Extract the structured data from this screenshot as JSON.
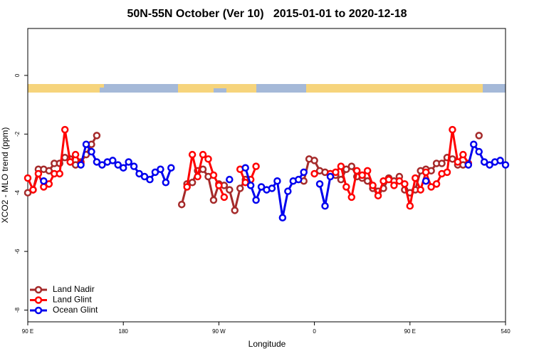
{
  "chart_data": {
    "type": "line",
    "title": "50N-55N October (Ver 10)   2015-01-01 to 2020-12-18",
    "x_label": "Longitude",
    "y_label": "XCO2 - MLO trend (ppm)",
    "x": [
      90,
      95,
      100,
      105,
      110,
      115,
      120,
      125,
      130,
      135,
      140,
      145,
      150,
      155,
      160,
      165,
      170,
      175,
      180,
      185,
      190,
      195,
      200,
      205,
      210,
      215,
      220,
      225,
      230,
      235,
      240,
      245,
      250,
      255,
      260,
      265,
      270,
      275,
      280,
      285,
      290,
      295,
      300,
      305,
      310,
      315,
      320,
      325,
      330,
      335,
      340,
      345,
      350,
      355,
      360,
      365,
      370,
      375,
      380,
      385,
      390,
      395,
      400,
      405,
      410,
      415,
      420,
      425,
      430,
      435,
      440,
      445,
      450,
      455,
      460,
      465,
      470,
      475,
      480,
      485,
      490,
      495,
      500,
      505,
      510,
      515,
      520,
      525,
      530,
      535,
      540
    ],
    "series": [
      {
        "name": "Land Nadir",
        "color": "#a52a2a",
        "values": [
          -4.0,
          -3.9,
          -3.2,
          -3.2,
          -3.25,
          -3.0,
          -3.0,
          -2.8,
          -2.85,
          -3.05,
          -2.95,
          -2.7,
          -2.35,
          -2.05,
          null,
          null,
          null,
          null,
          null,
          null,
          null,
          null,
          null,
          null,
          null,
          null,
          null,
          null,
          null,
          -4.4,
          -3.7,
          -3.65,
          -3.25,
          -3.2,
          -3.45,
          -4.25,
          -3.7,
          -3.75,
          -3.9,
          -4.6,
          -3.85,
          -3.55,
          null,
          null,
          null,
          null,
          null,
          null,
          null,
          null,
          null,
          null,
          -3.6,
          -2.85,
          -2.9,
          -3.25,
          -3.3,
          -3.35,
          -3.4,
          -3.55,
          -3.2,
          -3.1,
          -3.45,
          -3.5,
          -3.6,
          -3.85,
          -3.95,
          -3.85,
          -3.5,
          -3.6,
          -3.45,
          -3.9,
          -4.0,
          -3.9,
          -3.25,
          -3.2,
          -3.25,
          -3.0,
          -3.0,
          -2.8,
          -2.85,
          -3.05,
          -3.05,
          null,
          null,
          -2.05,
          null,
          null,
          null,
          null,
          null
        ]
      },
      {
        "name": "Land Glint",
        "color": "#ff0000",
        "values": [
          -3.5,
          -3.9,
          -3.35,
          -3.8,
          -3.7,
          -3.35,
          -3.35,
          -1.85,
          -2.95,
          -2.7,
          -3.0,
          null,
          null,
          null,
          null,
          null,
          null,
          null,
          null,
          null,
          null,
          null,
          null,
          null,
          null,
          null,
          null,
          null,
          null,
          null,
          -3.8,
          -2.7,
          -3.45,
          -2.7,
          -2.85,
          -3.4,
          -3.75,
          -4.15,
          null,
          null,
          -3.2,
          -3.65,
          -3.55,
          -3.1,
          null,
          null,
          null,
          null,
          null,
          null,
          null,
          null,
          null,
          null,
          -3.35,
          null,
          null,
          -3.35,
          -3.3,
          -3.1,
          -3.8,
          -4.15,
          -3.25,
          -3.4,
          -3.25,
          -3.75,
          -4.1,
          -3.6,
          -3.55,
          -3.75,
          -3.6,
          -3.7,
          -4.45,
          -3.5,
          -3.9,
          -3.3,
          -3.8,
          -3.7,
          -3.35,
          -3.3,
          -1.85,
          -2.95,
          -2.7,
          -3.0,
          null,
          null,
          null,
          null,
          null,
          null,
          null
        ]
      },
      {
        "name": "Ocean Glint",
        "color": "#0000ee",
        "values": [
          null,
          null,
          null,
          -3.6,
          null,
          null,
          null,
          null,
          null,
          null,
          -3.05,
          -2.35,
          -2.6,
          -2.95,
          -3.05,
          -2.95,
          -2.9,
          -3.05,
          -3.15,
          -2.95,
          -3.1,
          -3.35,
          -3.45,
          -3.55,
          -3.3,
          -3.2,
          -3.65,
          -3.15,
          null,
          null,
          null,
          null,
          null,
          null,
          null,
          null,
          null,
          null,
          -3.55,
          null,
          null,
          -3.15,
          -3.75,
          -4.25,
          -3.8,
          -3.9,
          -3.85,
          -3.6,
          -4.85,
          -3.95,
          -3.6,
          -3.55,
          -3.3,
          null,
          null,
          -3.7,
          -4.45,
          -3.45,
          null,
          null,
          null,
          null,
          null,
          null,
          null,
          null,
          null,
          null,
          null,
          null,
          null,
          null,
          null,
          null,
          null,
          -3.6,
          null,
          null,
          null,
          null,
          null,
          null,
          null,
          -3.05,
          -2.35,
          -2.6,
          -2.95,
          -3.05,
          -2.95,
          -2.9,
          -3.05
        ]
      }
    ],
    "xlim": [
      90,
      540
    ],
    "xticks": [
      {
        "value": 90,
        "label": "90 E"
      },
      180,
      {
        "value": 270,
        "label": "90 W"
      },
      {
        "value": 360,
        "label": "0"
      },
      {
        "value": 450,
        "label": "90 E"
      },
      540
    ],
    "ylim": [
      -8.4,
      1.6
    ],
    "yticks": [
      0,
      -2,
      -4,
      -6,
      -8
    ],
    "legend": "lower left",
    "grid": false
  }
}
